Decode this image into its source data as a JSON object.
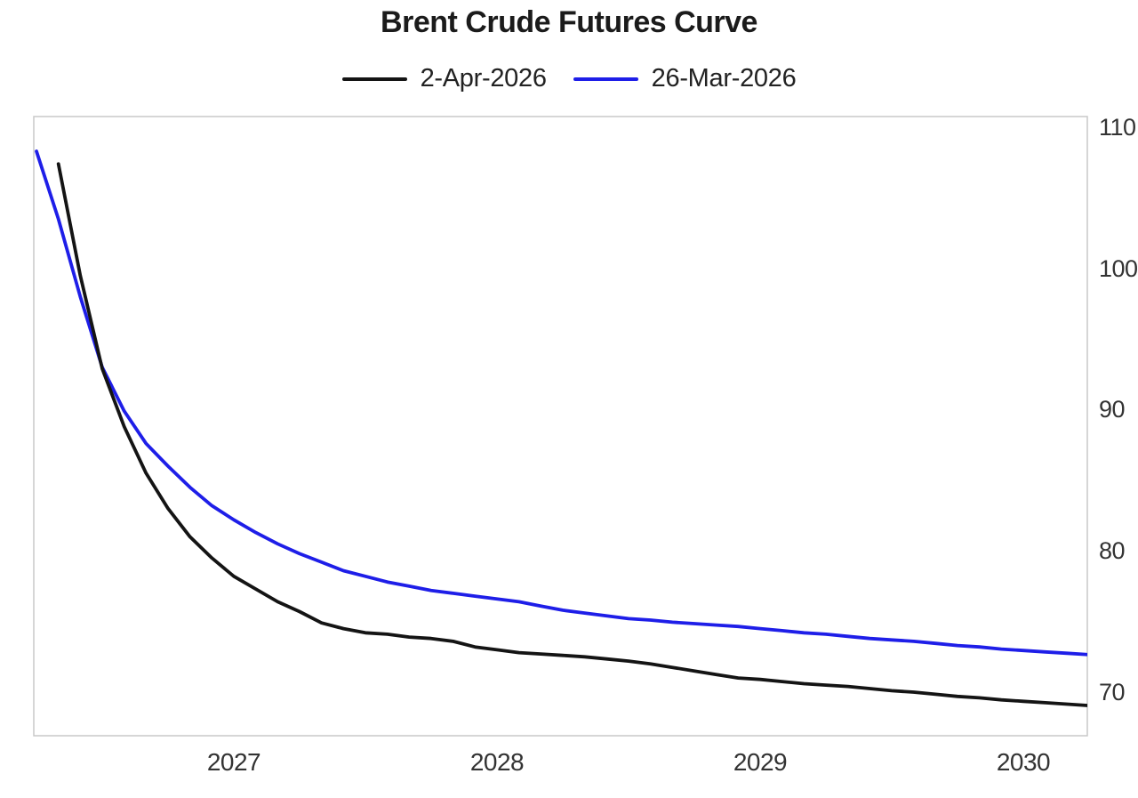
{
  "title": "Brent Crude Futures Curve",
  "chart_data": {
    "type": "line",
    "title": "Brent Crude Futures Curve",
    "legend_position": "top",
    "grid": false,
    "y_axis_side": "right",
    "ylim": [
      66.9,
      110.8
    ],
    "xlim_decimal_years": [
      2026.24,
      2030.24
    ],
    "y_ticks": [
      {
        "label": "110",
        "v": 110
      },
      {
        "label": "100",
        "v": 100
      },
      {
        "label": "90",
        "v": 90
      },
      {
        "label": "80",
        "v": 80
      },
      {
        "label": "70",
        "v": 70
      }
    ],
    "x_ticks": [
      {
        "label": "2027",
        "t": 2027
      },
      {
        "label": "2028",
        "t": 2028
      },
      {
        "label": "2029",
        "t": 2029
      },
      {
        "label": "2030",
        "t": 2030
      }
    ],
    "series": [
      {
        "name": "2-Apr-2026",
        "color": "#141414",
        "start_t": 2026.3333,
        "interval_months": 1,
        "values": [
          107.4,
          99.5,
          92.9,
          88.8,
          85.5,
          83.0,
          81.0,
          79.5,
          78.2,
          77.3,
          76.4,
          75.7,
          74.9,
          74.5,
          74.2,
          74.1,
          73.9,
          73.8,
          73.6,
          73.2,
          73.0,
          72.8,
          72.7,
          72.6,
          72.5,
          72.35,
          72.2,
          72.0,
          71.75,
          71.5,
          71.25,
          71.0,
          70.9,
          70.75,
          70.6,
          70.5,
          70.4,
          70.25,
          70.1,
          70.0,
          69.85,
          69.7,
          69.6,
          69.45,
          69.35,
          69.25,
          69.15,
          69.05
        ]
      },
      {
        "name": "26-Mar-2026",
        "color": "#1e1ee8",
        "start_t": 2026.25,
        "interval_months": 1,
        "values": [
          108.3,
          103.5,
          98.0,
          93.0,
          89.9,
          87.6,
          86.0,
          84.5,
          83.2,
          82.2,
          81.3,
          80.5,
          79.8,
          79.2,
          78.6,
          78.2,
          77.8,
          77.5,
          77.2,
          77.0,
          76.8,
          76.6,
          76.4,
          76.1,
          75.8,
          75.6,
          75.4,
          75.2,
          75.1,
          74.95,
          74.85,
          74.75,
          74.65,
          74.5,
          74.35,
          74.2,
          74.1,
          73.95,
          73.8,
          73.7,
          73.6,
          73.45,
          73.3,
          73.2,
          73.05,
          72.95,
          72.85,
          72.75,
          72.65
        ]
      }
    ]
  }
}
